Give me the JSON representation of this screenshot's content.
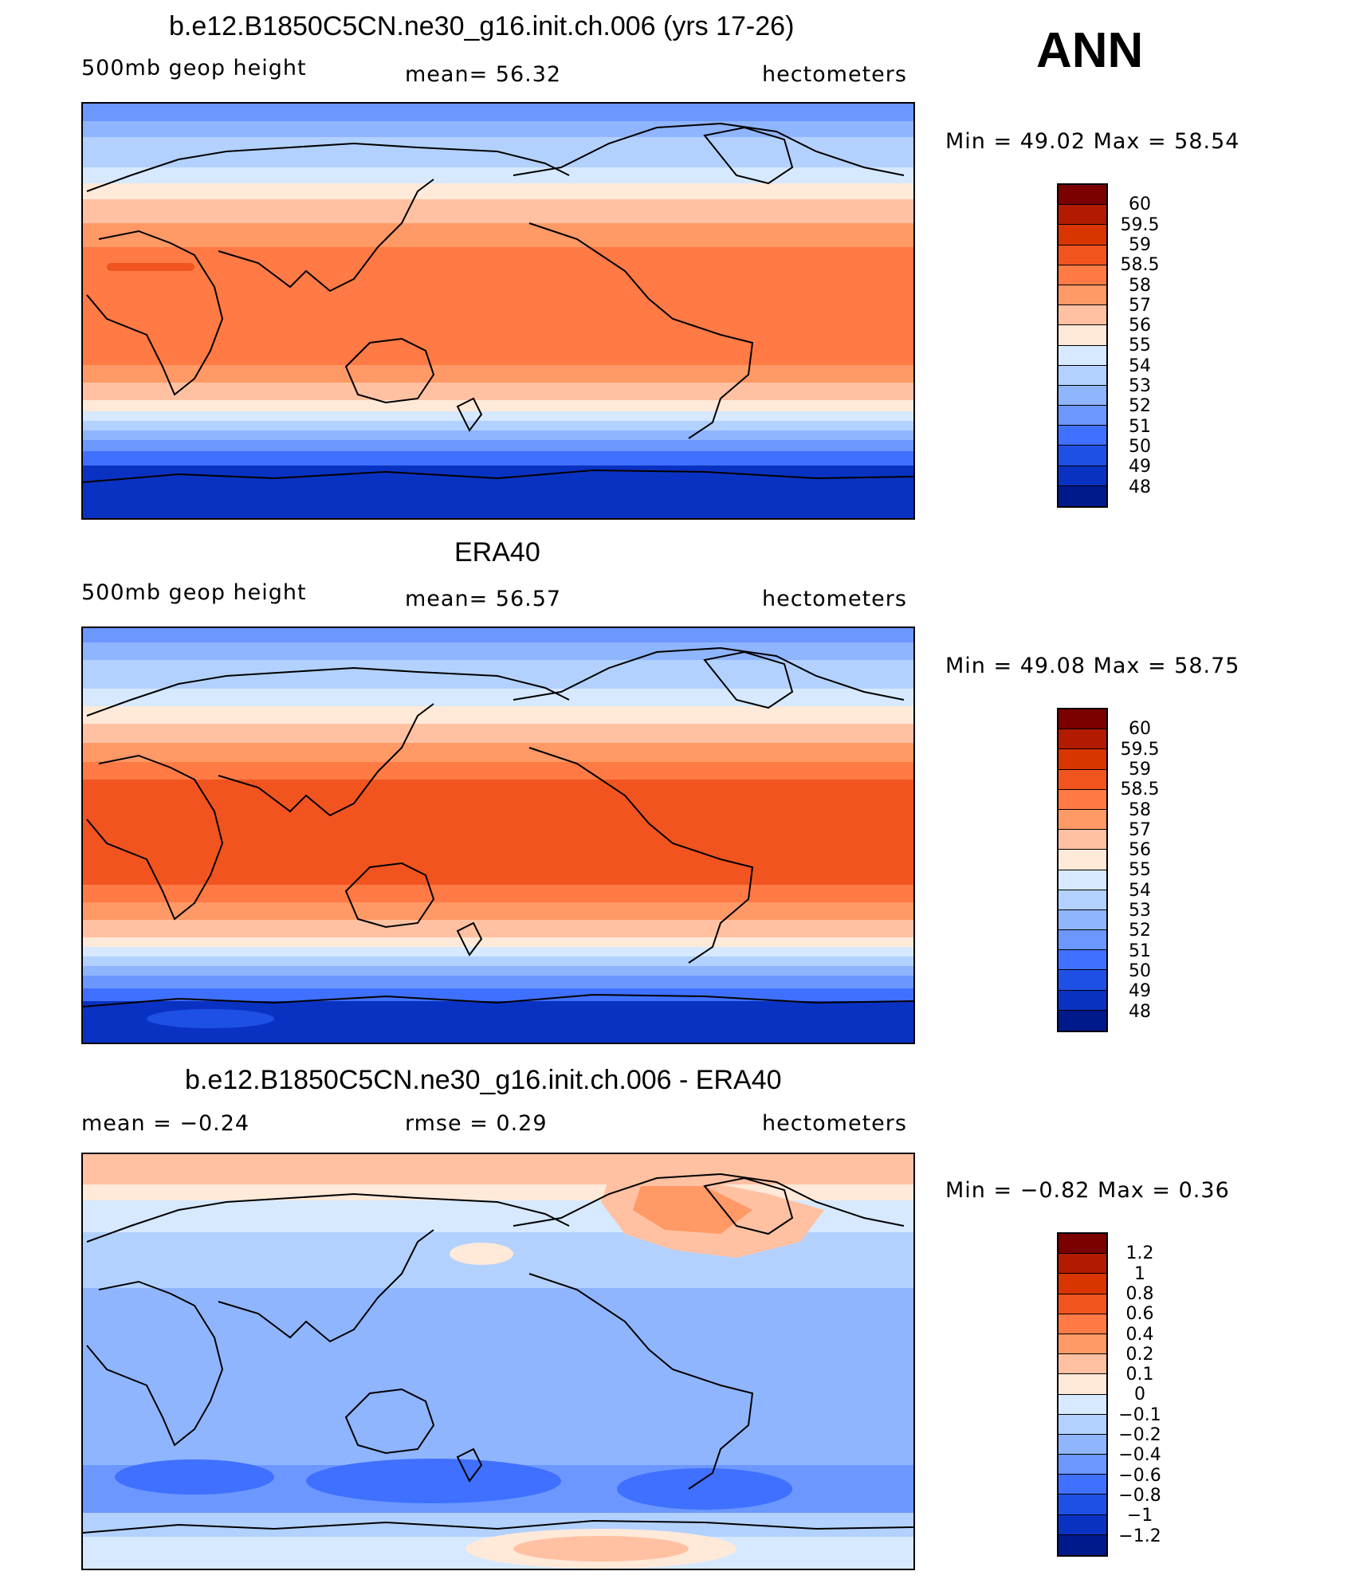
{
  "season": "ANN",
  "panels": [
    {
      "title": "b.e12.B1850C5CN.ne30_g16.init.ch.006 (yrs 17-26)",
      "left": "500mb geop height",
      "center": "mean=   56.32",
      "right": "hectometers",
      "minmax": "Min =   49.02  Max =   58.54",
      "labels": [
        "60",
        "59.5",
        "59",
        "58.5",
        "58",
        "57",
        "56",
        "55",
        "54",
        "53",
        "52",
        "51",
        "50",
        "49",
        "48"
      ],
      "colors": [
        "#7b0000",
        "#b31b00",
        "#d93500",
        "#f2541f",
        "#ff7a45",
        "#ff9966",
        "#ffc1a2",
        "#ffe9d8",
        "#d6e9ff",
        "#b3d1ff",
        "#8fb5ff",
        "#6b97ff",
        "#3f70ff",
        "#1f50e6",
        "#0a32c2",
        "#001a8c"
      ]
    },
    {
      "title": "ERA40",
      "left": "500mb geop height",
      "center": "mean=   56.57",
      "right": "hectometers",
      "minmax": "Min =   49.08  Max =   58.75",
      "labels": [
        "60",
        "59.5",
        "59",
        "58.5",
        "58",
        "57",
        "56",
        "55",
        "54",
        "53",
        "52",
        "51",
        "50",
        "49",
        "48"
      ],
      "colors": [
        "#7b0000",
        "#b31b00",
        "#d93500",
        "#f2541f",
        "#ff7a45",
        "#ff9966",
        "#ffc1a2",
        "#ffe9d8",
        "#d6e9ff",
        "#b3d1ff",
        "#8fb5ff",
        "#6b97ff",
        "#3f70ff",
        "#1f50e6",
        "#0a32c2",
        "#001a8c"
      ]
    },
    {
      "title": "b.e12.B1850C5CN.ne30_g16.init.ch.006 - ERA40",
      "left": "mean =   −0.24",
      "center": "rmse =    0.29",
      "right": "hectometers",
      "minmax": "Min =  −0.82  Max =    0.36",
      "labels": [
        "1.2",
        "1",
        "0.8",
        "0.6",
        "0.4",
        "0.2",
        "0.1",
        "0",
        "−0.1",
        "−0.2",
        "−0.4",
        "−0.6",
        "−0.8",
        "−1",
        "−1.2"
      ],
      "colors": [
        "#7b0000",
        "#b31b00",
        "#d93500",
        "#f2541f",
        "#ff7a45",
        "#ff9966",
        "#ffc1a2",
        "#ffe9d8",
        "#d6e9ff",
        "#b3d1ff",
        "#8fb5ff",
        "#6b97ff",
        "#3f70ff",
        "#1f50e6",
        "#0a32c2",
        "#001a8c"
      ]
    }
  ]
}
